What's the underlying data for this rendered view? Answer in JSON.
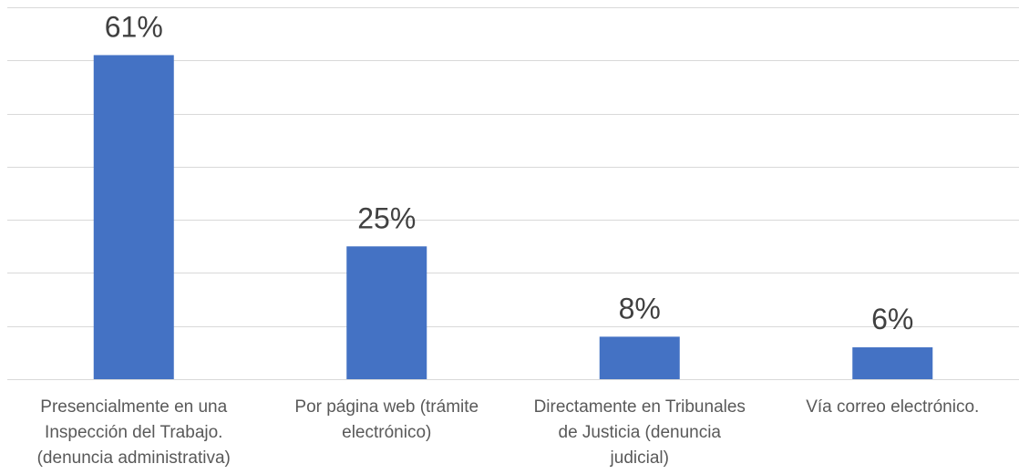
{
  "chart_data": {
    "type": "bar",
    "categories": [
      [
        "Presencialmente en una",
        "Inspección del Trabajo.",
        "(denuncia administrativa)"
      ],
      [
        "Por página web (trámite",
        "electrónico)"
      ],
      [
        "Directamente en Tribunales",
        "de Justicia (denuncia",
        "judicial)"
      ],
      [
        "Vía correo electrónico."
      ]
    ],
    "values": [
      61,
      25,
      8,
      6
    ],
    "data_labels": [
      "61%",
      "25%",
      "8%",
      "6%"
    ],
    "ylim": [
      0,
      70
    ],
    "y_gridlines": [
      0,
      10,
      20,
      30,
      40,
      50,
      60,
      70
    ],
    "grid": true,
    "legend": "none",
    "title": "",
    "xlabel": "",
    "ylabel": "",
    "bar_color": "#4472c4",
    "grid_color": "#d9d9d9"
  }
}
